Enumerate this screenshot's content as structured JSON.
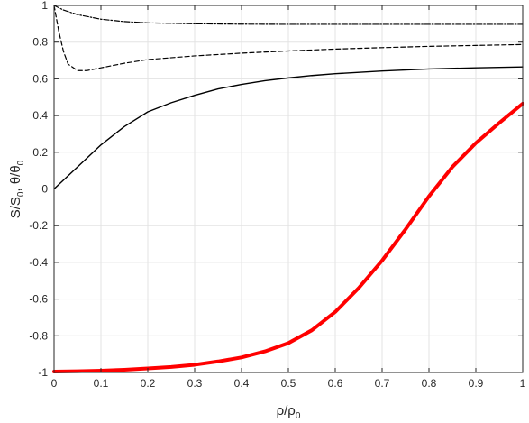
{
  "chart_data": {
    "type": "line",
    "title": "",
    "xlabel": "ρ/ρ",
    "xlabel_sub": "0",
    "ylabel_parts": [
      "S/S",
      "0",
      ", θ/θ",
      "0"
    ],
    "xlim": [
      0,
      1
    ],
    "ylim": [
      -1,
      1
    ],
    "grid": true,
    "x_ticks": [
      0,
      0.1,
      0.2,
      0.3,
      0.4,
      0.5,
      0.6,
      0.7,
      0.8,
      0.9,
      1
    ],
    "x_tick_labels": [
      "0",
      "0.1",
      "0.2",
      "0.3",
      "0.4",
      "0.5",
      "0.6",
      "0.7",
      "0.8",
      "0.9",
      "1"
    ],
    "y_ticks": [
      -1,
      -0.8,
      -0.6,
      -0.4,
      -0.2,
      0,
      0.2,
      0.4,
      0.6,
      0.8,
      1
    ],
    "y_tick_labels": [
      "-1",
      "-0.8",
      "-0.6",
      "-0.4",
      "-0.2",
      "0",
      "0.2",
      "0.4",
      "0.6",
      "0.8",
      "1"
    ],
    "series": [
      {
        "style": "dash-dot",
        "color": "#000000",
        "x": [
          0,
          0.02,
          0.05,
          0.1,
          0.15,
          0.2,
          0.3,
          0.4,
          0.5,
          0.6,
          0.7,
          0.8,
          0.9,
          1.0
        ],
        "y": [
          1.0,
          0.975,
          0.95,
          0.925,
          0.912,
          0.905,
          0.9,
          0.898,
          0.897,
          0.897,
          0.897,
          0.897,
          0.897,
          0.897
        ]
      },
      {
        "style": "dashed",
        "color": "#000000",
        "x": [
          0,
          0.01,
          0.02,
          0.03,
          0.05,
          0.07,
          0.1,
          0.15,
          0.2,
          0.3,
          0.4,
          0.5,
          0.6,
          0.7,
          0.8,
          0.9,
          1.0
        ],
        "y": [
          1.0,
          0.86,
          0.75,
          0.68,
          0.645,
          0.645,
          0.66,
          0.685,
          0.705,
          0.725,
          0.74,
          0.752,
          0.762,
          0.77,
          0.777,
          0.782,
          0.787
        ]
      },
      {
        "style": "solid",
        "color": "#000000",
        "x": [
          0,
          0.05,
          0.1,
          0.15,
          0.2,
          0.25,
          0.3,
          0.35,
          0.4,
          0.45,
          0.5,
          0.55,
          0.6,
          0.7,
          0.8,
          0.9,
          1.0
        ],
        "y": [
          0.0,
          0.12,
          0.24,
          0.34,
          0.42,
          0.47,
          0.51,
          0.545,
          0.57,
          0.59,
          0.605,
          0.618,
          0.628,
          0.643,
          0.654,
          0.66,
          0.665
        ]
      },
      {
        "style": "solid-thick",
        "color": "#ff0000",
        "x": [
          0,
          0.05,
          0.1,
          0.15,
          0.2,
          0.25,
          0.3,
          0.35,
          0.4,
          0.45,
          0.5,
          0.55,
          0.6,
          0.65,
          0.7,
          0.75,
          0.8,
          0.85,
          0.9,
          0.95,
          1.0
        ],
        "y": [
          -0.995,
          -0.993,
          -0.99,
          -0.985,
          -0.978,
          -0.97,
          -0.958,
          -0.94,
          -0.918,
          -0.885,
          -0.84,
          -0.77,
          -0.67,
          -0.54,
          -0.39,
          -0.22,
          -0.04,
          0.12,
          0.25,
          0.36,
          0.465
        ]
      }
    ]
  }
}
